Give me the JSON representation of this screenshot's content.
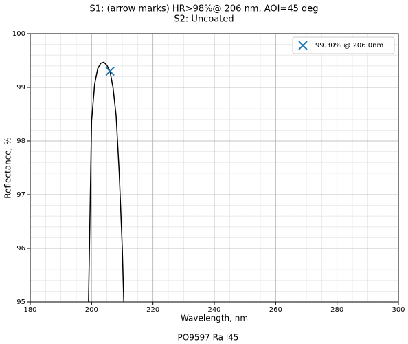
{
  "chart_data": {
    "type": "line",
    "title": "S1: (arrow marks) HR>98%@ 206 nm, AOI=45 deg",
    "subtitle": "S2: Uncoated",
    "x_label": "Wavelength, nm",
    "y_label": "Reflectance, %",
    "footer": "PO9597 Ra i45",
    "x": [
      199.0,
      200,
      201,
      202,
      203,
      204,
      205,
      206,
      207,
      208,
      209,
      210,
      210.5
    ],
    "series": [
      {
        "color": "#000000",
        "values": [
          95.0,
          98.38,
          99.06,
          99.35,
          99.45,
          99.47,
          99.41,
          99.3,
          98.99,
          98.47,
          97.42,
          96.01,
          95.0
        ]
      },
      {
        "name": "99.30% @ 206.0nm",
        "type": "scatter",
        "marker": "x",
        "color": "#1f77b4",
        "x": [
          206.0
        ],
        "values": [
          99.3
        ]
      }
    ],
    "xlim": [
      180,
      300
    ],
    "xticks": [
      180,
      200,
      220,
      240,
      260,
      280,
      300
    ],
    "ylim": [
      95,
      100
    ],
    "yticks": [
      95,
      96,
      97,
      98,
      99,
      100
    ],
    "grid": true,
    "minor_grid": true,
    "legend": "upper right"
  }
}
